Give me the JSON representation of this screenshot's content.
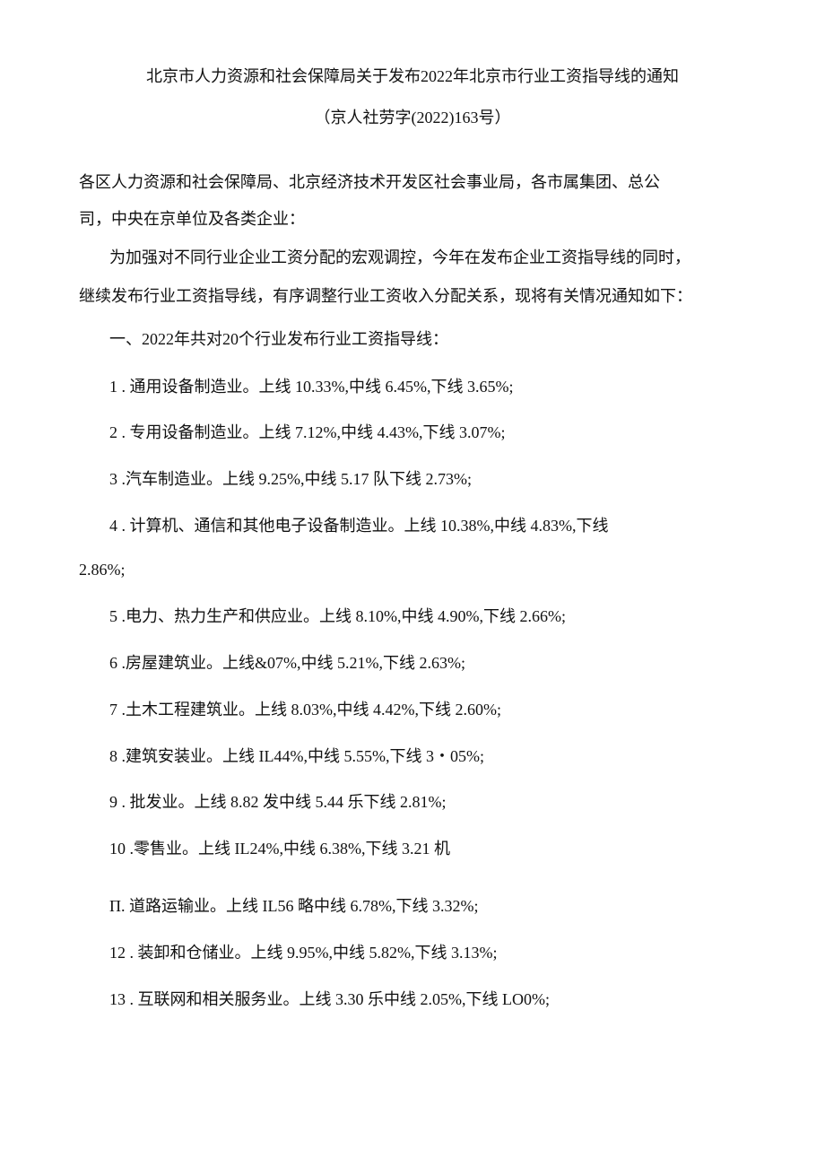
{
  "document": {
    "title": "北京市人力资源和社会保障局关于发布2022年北京市行业工资指导线的通知",
    "doc_number": "（京人社劳字(2022)163号）",
    "salutation_line1": "各区人力资源和社会保障局、北京经济技术开发区社会事业局，各市属集团、总公",
    "salutation_line2": "司，中央在京单位及各类企业：",
    "intro_line1": "为加强对不同行业企业工资分配的宏观调控，今年在发布企业工资指导线的同时，",
    "intro_line2": "继续发布行业工资指导线，有序调整行业工资收入分配关系，现将有关情况通知如下：",
    "section_heading": "一、2022年共对20个行业发布行业工资指导线：",
    "items": [
      "1 . 通用设备制造业。上线 10.33%,中线 6.45%,下线 3.65%;",
      "2 . 专用设备制造业。上线 7.12%,中线 4.43%,下线 3.07%;",
      "3 .汽车制造业。上线 9.25%,中线 5.17 队下线 2.73%;",
      "4 . 计算机、通信和其他电子设备制造业。上线 10.38%,中线 4.83%,下线",
      "2.86%;",
      "5 .电力、热力生产和供应业。上线 8.10%,中线 4.90%,下线 2.66%;",
      "6 .房屋建筑业。上线&07%,中线 5.21%,下线 2.63%;",
      "7 .土木工程建筑业。上线 8.03%,中线 4.42%,下线 2.60%;",
      "8 .建筑安装业。上线 IL44%,中线 5.55%,下线 3・05%;",
      "9 . 批发业。上线 8.82 发中线 5.44 乐下线 2.81%;",
      "10 .零售业。上线 IL24%,中线 6.38%,下线 3.21 机",
      "П. 道路运输业。上线 IL56 略中线 6.78%,下线 3.32%;",
      "12 . 装卸和仓储业。上线 9.95%,中线 5.82%,下线 3.13%;",
      "13 . 互联网和相关服务业。上线 3.30 乐中线 2.05%,下线 LO0%;"
    ]
  }
}
